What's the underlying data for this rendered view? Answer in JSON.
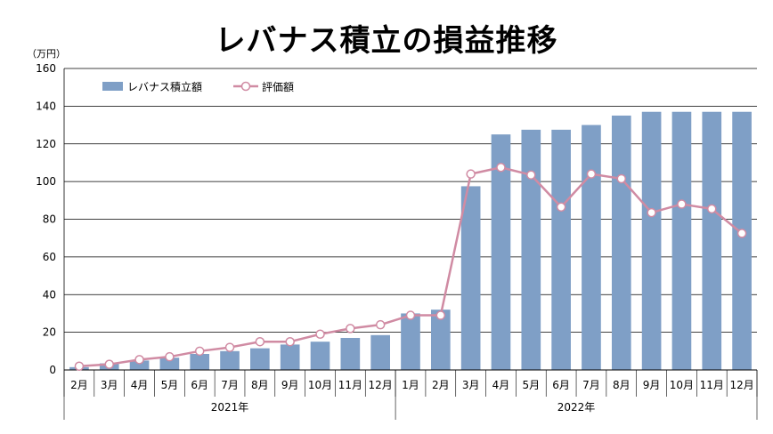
{
  "chart_data": {
    "type": "bar",
    "title": "レバナス積立の損益推移",
    "unit_label": "（万円）",
    "ylim": [
      0,
      160
    ],
    "yticks": [
      0,
      20,
      40,
      60,
      80,
      100,
      120,
      140,
      160
    ],
    "grid": true,
    "legend_position": "top-left",
    "categories": [
      "2月",
      "3月",
      "4月",
      "5月",
      "6月",
      "7月",
      "8月",
      "9月",
      "10月",
      "11月",
      "12月",
      "1月",
      "2月",
      "3月",
      "4月",
      "5月",
      "6月",
      "7月",
      "8月",
      "9月",
      "10月",
      "11月",
      "12月"
    ],
    "groups": [
      {
        "label": "2021年",
        "count": 11
      },
      {
        "label": "2022年",
        "count": 12
      }
    ],
    "series": [
      {
        "name": "レバナス積立額",
        "type": "bar",
        "color": "#7f9fc6",
        "values": [
          1.5,
          3.5,
          5,
          6.5,
          8.5,
          10,
          11.5,
          13.5,
          15,
          17,
          18.5,
          30,
          32,
          97.5,
          125,
          127.5,
          127.5,
          130,
          135,
          137,
          137,
          137,
          137
        ]
      },
      {
        "name": "評価額",
        "type": "line",
        "color": "#d08ba3",
        "values": [
          2,
          3,
          5.5,
          7,
          10,
          12,
          15,
          15,
          19,
          22,
          24,
          29,
          29,
          104,
          107.5,
          103.5,
          86.5,
          104,
          101.5,
          83.5,
          88,
          85.5,
          72.5
        ]
      }
    ]
  }
}
